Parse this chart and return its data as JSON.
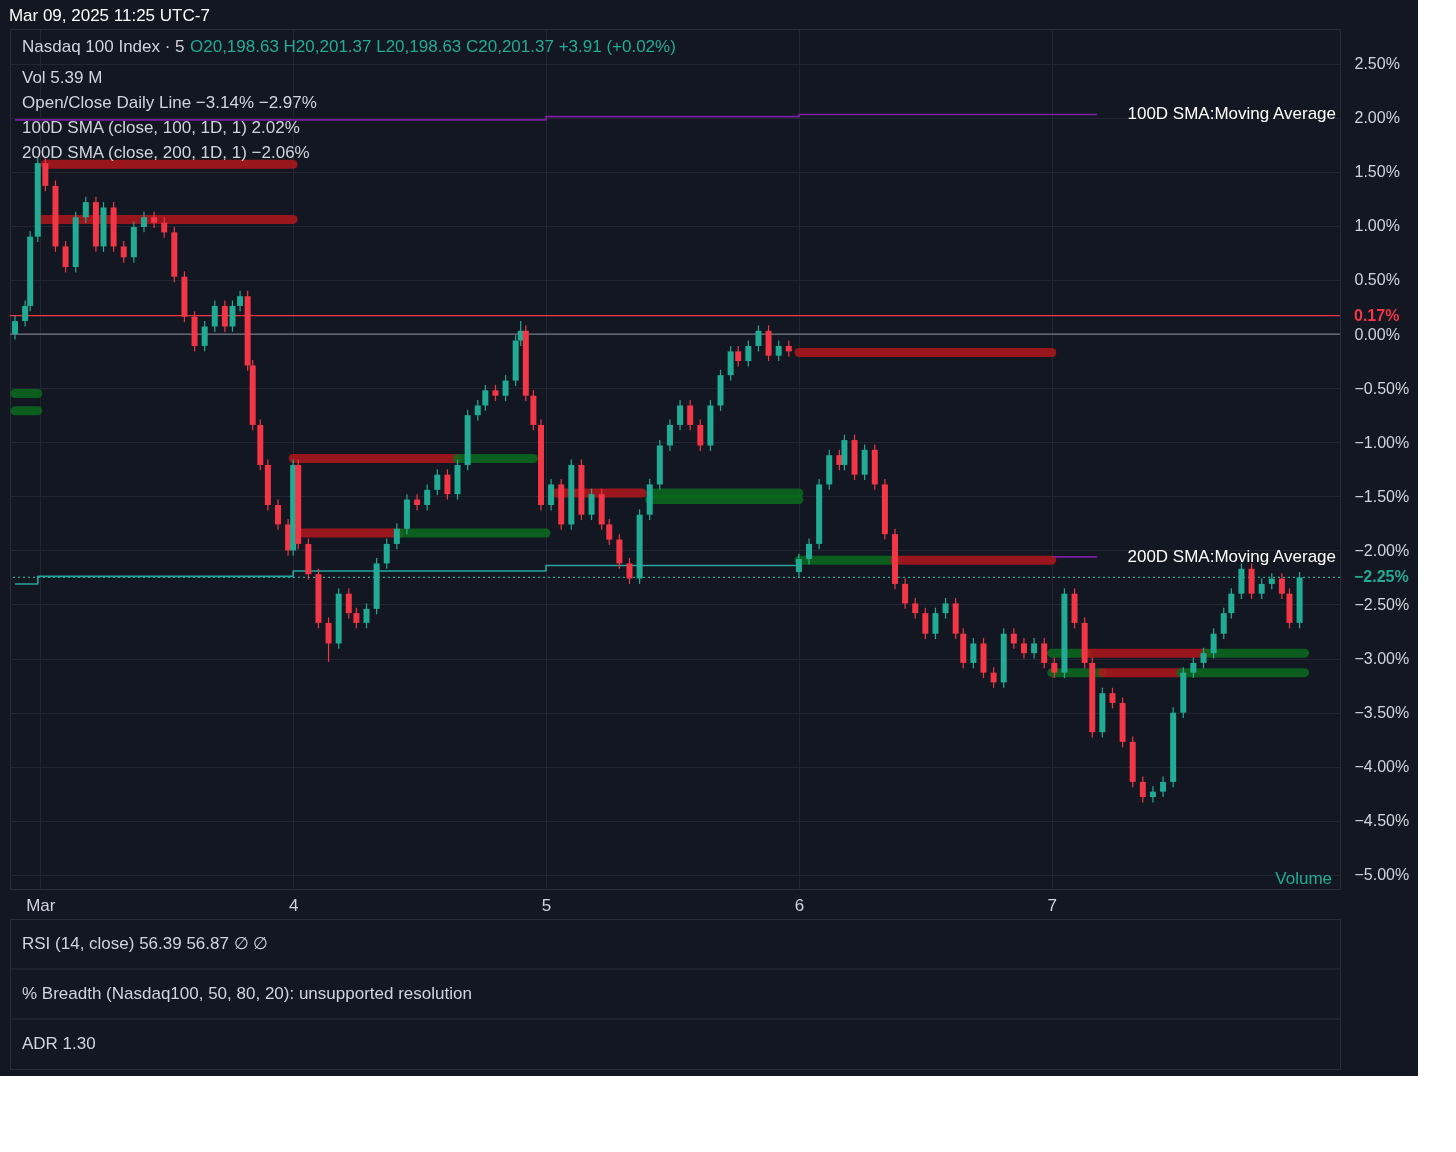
{
  "chart_data": {
    "type": "candlestick",
    "title": "Nasdaq 100 Index · 5",
    "annotations": [
      "O20,198.63  H20,201.37  L20,198.63  C20,201.37  +3.91 (+0.02%)",
      "Vol 5.39 M",
      "Open/Close Daily Line −3.14% −2.97%",
      "100D SMA (close, 100, 1D, 1) 2.02%",
      "200D SMA (close, 200, 1D, 1) −2.06%",
      "RSI (14, close) 56.39 56.87 ∅ ∅",
      "% Breadth (Nasdaq100, 50, 80, 20): unsupported resolution",
      "ADR 1.30",
      "Mar 09, 2025 11:25 UTC-7",
      "Volume",
      "100D SMA:Moving Average",
      "200D SMA:Moving Average"
    ],
    "xlim": [
      2.9,
      8.12
    ],
    "xticks": [
      {
        "value": 3,
        "label": "Mar"
      },
      4,
      5,
      6,
      7
    ],
    "ylim": [
      -5.13,
      2.82
    ],
    "yticks": [
      {
        "value": 2.5,
        "label": "2.50%"
      },
      {
        "value": 2,
        "label": "2.00%"
      },
      {
        "value": 1.5,
        "label": "1.50%"
      },
      {
        "value": 1,
        "label": "1.00%"
      },
      {
        "value": 0.5,
        "label": "0.50%"
      },
      {
        "value": 0,
        "label": "0.00%"
      },
      {
        "value": -0.5,
        "label": "−0.50%"
      },
      {
        "value": -1,
        "label": "−1.00%"
      },
      {
        "value": -1.5,
        "label": "−1.50%"
      },
      {
        "value": -2,
        "label": "−2.00%"
      },
      {
        "value": -2.5,
        "label": "−2.50%"
      },
      {
        "value": -3,
        "label": "−3.00%"
      },
      {
        "value": -3.5,
        "label": "−3.50%"
      },
      {
        "value": -4,
        "label": "−4.00%"
      },
      {
        "value": -4.5,
        "label": "−4.50%"
      },
      {
        "value": -5,
        "label": "−5.00%"
      }
    ],
    "grid": true,
    "ref_lines": [
      {
        "axis": "y",
        "value": 0.17,
        "label": "0.17%",
        "color": "#f23645"
      },
      {
        "axis": "y",
        "value": 0,
        "color": "#787b86"
      },
      {
        "axis": "y",
        "value": -2.25,
        "label": "−2.25%",
        "color": "#22ab94",
        "line_style": "dotted"
      }
    ],
    "series": [
      {
        "type": "step",
        "color": "#7b1fa2",
        "x": [
          2.9,
          5.0,
          6.0,
          7.18
        ],
        "values": [
          1.98,
          2.01,
          2.03,
          2.03
        ]
      },
      {
        "type": "step",
        "color": "#26a69a",
        "x": [
          2.9,
          2.99,
          4.0,
          5.0,
          6.0
        ],
        "values": [
          -2.31,
          -2.24,
          -2.19,
          -2.14,
          -2.1
        ]
      },
      {
        "type": "step",
        "color": "#7b1fa2",
        "x": [
          7.0,
          7.18
        ],
        "values": [
          -2.06,
          -2.06
        ]
      },
      {
        "type": "line",
        "color": "#0b6b1c",
        "x": [
          2.9,
          2.99
        ],
        "values": [
          -0.55,
          -0.55
        ]
      },
      {
        "type": "line",
        "color": "#0b6b1c",
        "x": [
          2.9,
          2.99
        ],
        "values": [
          -0.71,
          -0.71
        ]
      },
      {
        "type": "line",
        "color": "#b2181b",
        "x": [
          3.02,
          4.0
        ],
        "values": [
          1.57,
          1.57
        ]
      },
      {
        "type": "line",
        "color": "#b2181b",
        "x": [
          3.0,
          4.0
        ],
        "values": [
          1.06,
          1.06
        ]
      },
      {
        "type": "line",
        "color": "#b2181b",
        "x": [
          4.0,
          4.65
        ],
        "values": [
          -1.15,
          -1.15
        ]
      },
      {
        "type": "line",
        "color": "#0b6b1c",
        "x": [
          4.65,
          4.95
        ],
        "values": [
          -1.15,
          -1.15
        ]
      },
      {
        "type": "line",
        "color": "#b2181b",
        "x": [
          4.04,
          4.42
        ],
        "values": [
          -1.84,
          -1.84
        ]
      },
      {
        "type": "line",
        "color": "#0b6b1c",
        "x": [
          4.42,
          5.0
        ],
        "values": [
          -1.84,
          -1.84
        ]
      },
      {
        "type": "line",
        "color": "#b2181b",
        "x": [
          5.04,
          5.38
        ],
        "values": [
          -1.47,
          -1.47
        ]
      },
      {
        "type": "line",
        "color": "#0b6b1c",
        "x": [
          5.42,
          6.0
        ],
        "values": [
          -1.47,
          -1.47
        ]
      },
      {
        "type": "line",
        "color": "#0b6b1c",
        "x": [
          5.41,
          6.0
        ],
        "values": [
          -1.53,
          -1.53
        ]
      },
      {
        "type": "line",
        "color": "#b2181b",
        "x": [
          6.0,
          7.0
        ],
        "values": [
          -0.17,
          -0.17
        ]
      },
      {
        "type": "line",
        "color": "#0b6b1c",
        "x": [
          6.0,
          6.38
        ],
        "values": [
          -2.09,
          -2.09
        ]
      },
      {
        "type": "line",
        "color": "#b2181b",
        "x": [
          6.38,
          7.0
        ],
        "values": [
          -2.09,
          -2.09
        ]
      },
      {
        "type": "line",
        "color": "#0b6b1c",
        "x": [
          7.0,
          7.14
        ],
        "values": [
          -2.95,
          -2.95
        ]
      },
      {
        "type": "line",
        "color": "#b2181b",
        "x": [
          7.14,
          7.61
        ],
        "values": [
          -2.95,
          -2.95
        ]
      },
      {
        "type": "line",
        "color": "#0b6b1c",
        "x": [
          7.61,
          8.0
        ],
        "values": [
          -2.95,
          -2.95
        ]
      },
      {
        "type": "line",
        "color": "#0b6b1c",
        "x": [
          7.0,
          7.2
        ],
        "values": [
          -3.13,
          -3.13
        ]
      },
      {
        "type": "line",
        "color": "#b2181b",
        "x": [
          7.2,
          7.51
        ],
        "values": [
          -3.13,
          -3.13
        ]
      },
      {
        "type": "line",
        "color": "#0b6b1c",
        "x": [
          7.51,
          8.0
        ],
        "values": [
          -3.13,
          -3.13
        ]
      },
      {
        "colors": [
          "#22ab94",
          "#22ab94",
          "#22ab94",
          "#22ab94",
          "#f23645",
          "#f23645",
          "#f23645",
          "#22ab94",
          "#22ab94",
          "#f23645",
          "#22ab94",
          "#f23645",
          "#f23645",
          "#22ab94",
          "#22ab94",
          "#f23645",
          "#f23645",
          "#f23645",
          "#f23645",
          "#f23645",
          "#22ab94",
          "#22ab94",
          "#f23645",
          "#22ab94",
          "#22ab94",
          "#f23645",
          "#f23645",
          "#f23645",
          "#f23645",
          "#f23645",
          "#f23645",
          "#22ab94",
          "#f23645",
          "#f23645",
          "#f23645",
          "#f23645",
          "#22ab94",
          "#f23645",
          "#f23645",
          "#22ab94",
          "#22ab94",
          "#22ab94",
          "#22ab94",
          "#22ab94",
          "#f23645",
          "#22ab94",
          "#22ab94",
          "#f23645",
          "#22ab94",
          "#22ab94",
          "#22ab94",
          "#22ab94",
          "#f23645",
          "#22ab94",
          "#22ab94",
          "#22ab94",
          "#f23645",
          "#f23645",
          "#f23645",
          "#22ab94",
          "#f23645",
          "#22ab94",
          "#f23645",
          "#22ab94",
          "#f23645",
          "#f23645",
          "#f23645",
          "#f23645",
          "#22ab94",
          "#22ab94",
          "#22ab94",
          "#22ab94",
          "#22ab94",
          "#f23645",
          "#f23645",
          "#22ab94",
          "#22ab94",
          "#22ab94",
          "#f23645",
          "#22ab94",
          "#22ab94",
          "#f23645",
          "#22ab94",
          "#f23645",
          "#22ab94",
          "#22ab94",
          "#22ab94",
          "#22ab94",
          "#f23645",
          "#22ab94",
          "#f23645",
          "#22ab94",
          "#f23645",
          "#f23645",
          "#f23645",
          "#f23645",
          "#f23645",
          "#f23645",
          "#22ab94",
          "#22ab94",
          "#f23645",
          "#f23645",
          "#22ab94",
          "#f23645",
          "#f23645",
          "#22ab94",
          "#f23645",
          "#f23645",
          "#22ab94",
          "#f23645",
          "#f23645",
          "#22ab94",
          "#f23645",
          "#f23645",
          "#f23645",
          "#22ab94",
          "#f23645",
          "#f23645",
          "#f23645",
          "#f23645",
          "#22ab94",
          "#22ab94",
          "#22ab94",
          "#22ab94",
          "#22ab94",
          "#22ab94",
          "#22ab94",
          "#22ab94",
          "#22ab94",
          "#22ab94",
          "#f23645",
          "#22ab94",
          "#22ab94",
          "#f23645",
          "#f23645",
          "#22ab94"
        ],
        "x": [
          2.9,
          2.94,
          2.96,
          2.99,
          3.02,
          3.06,
          3.1,
          3.14,
          3.18,
          3.22,
          3.25,
          3.29,
          3.33,
          3.37,
          3.41,
          3.45,
          3.49,
          3.53,
          3.57,
          3.61,
          3.65,
          3.69,
          3.73,
          3.76,
          3.79,
          3.82,
          3.84,
          3.87,
          3.9,
          3.94,
          3.98,
          4.0,
          4.02,
          4.06,
          4.1,
          4.14,
          4.18,
          4.22,
          4.25,
          4.29,
          4.33,
          4.37,
          4.41,
          4.45,
          4.49,
          4.53,
          4.57,
          4.61,
          4.65,
          4.69,
          4.73,
          4.76,
          4.8,
          4.84,
          4.88,
          4.9,
          4.92,
          4.95,
          4.98,
          5.02,
          5.06,
          5.1,
          5.14,
          5.18,
          5.22,
          5.25,
          5.29,
          5.33,
          5.37,
          5.41,
          5.45,
          5.49,
          5.53,
          5.57,
          5.61,
          5.65,
          5.69,
          5.73,
          5.76,
          5.8,
          5.84,
          5.88,
          5.92,
          5.96,
          6.0,
          6.04,
          6.08,
          6.12,
          6.16,
          6.18,
          6.22,
          6.26,
          6.3,
          6.34,
          6.38,
          6.42,
          6.46,
          6.5,
          6.54,
          6.58,
          6.62,
          6.65,
          6.69,
          6.73,
          6.77,
          6.81,
          6.85,
          6.89,
          6.93,
          6.97,
          7.01,
          7.05,
          7.09,
          7.13,
          7.16,
          7.2,
          7.24,
          7.28,
          7.32,
          7.36,
          7.4,
          7.44,
          7.48,
          7.52,
          7.56,
          7.6,
          7.64,
          7.68,
          7.71,
          7.75,
          7.79,
          7.83,
          7.87,
          7.91,
          7.94,
          7.98
        ],
        "ohlc": [
          [
            0.0,
            0.17,
            -0.05,
            0.12
          ],
          [
            0.12,
            0.31,
            0.07,
            0.26
          ],
          [
            0.26,
            0.95,
            0.21,
            0.9
          ],
          [
            0.9,
            1.63,
            0.85,
            1.58
          ],
          [
            1.58,
            1.63,
            1.32,
            1.37
          ],
          [
            1.37,
            1.42,
            0.76,
            0.81
          ],
          [
            0.81,
            0.86,
            0.57,
            0.62
          ],
          [
            0.62,
            1.13,
            0.57,
            1.08
          ],
          [
            1.08,
            1.27,
            1.03,
            1.22
          ],
          [
            1.22,
            1.27,
            0.76,
            0.81
          ],
          [
            0.81,
            1.22,
            0.76,
            1.17
          ],
          [
            1.17,
            1.22,
            0.76,
            0.81
          ],
          [
            0.81,
            0.86,
            0.66,
            0.71
          ],
          [
            0.71,
            1.04,
            0.66,
            0.99
          ],
          [
            0.99,
            1.13,
            0.94,
            1.08
          ],
          [
            1.08,
            1.13,
            0.98,
            1.03
          ],
          [
            1.03,
            1.08,
            0.89,
            0.94
          ],
          [
            0.94,
            0.99,
            0.48,
            0.53
          ],
          [
            0.53,
            0.58,
            0.11,
            0.16
          ],
          [
            0.16,
            0.21,
            -0.16,
            -0.11
          ],
          [
            -0.11,
            0.12,
            -0.16,
            0.07
          ],
          [
            0.07,
            0.31,
            0.02,
            0.26
          ],
          [
            0.26,
            0.31,
            0.02,
            0.07
          ],
          [
            0.07,
            0.31,
            0.02,
            0.26
          ],
          [
            0.26,
            0.4,
            0.21,
            0.35
          ],
          [
            0.35,
            0.4,
            -0.34,
            -0.29
          ],
          [
            -0.29,
            -0.24,
            -0.89,
            -0.84
          ],
          [
            -0.84,
            -0.79,
            -1.26,
            -1.21
          ],
          [
            -1.21,
            -1.16,
            -1.63,
            -1.58
          ],
          [
            -1.58,
            -1.53,
            -1.81,
            -1.76
          ],
          [
            -1.76,
            -1.71,
            -2.05,
            -2.0
          ],
          [
            -2.0,
            -1.16,
            -2.05,
            -1.21
          ],
          [
            -1.21,
            -1.16,
            -1.99,
            -1.94
          ],
          [
            -1.94,
            -1.89,
            -2.27,
            -2.22
          ],
          [
            -2.22,
            -2.17,
            -2.72,
            -2.67
          ],
          [
            -2.67,
            -2.62,
            -3.03,
            -2.86
          ],
          [
            -2.86,
            -2.35,
            -2.91,
            -2.4
          ],
          [
            -2.4,
            -2.35,
            -2.63,
            -2.58
          ],
          [
            -2.58,
            -2.53,
            -2.72,
            -2.67
          ],
          [
            -2.67,
            -2.49,
            -2.72,
            -2.54
          ],
          [
            -2.54,
            -2.07,
            -2.59,
            -2.12
          ],
          [
            -2.12,
            -1.89,
            -2.17,
            -1.94
          ],
          [
            -1.94,
            -1.75,
            -1.99,
            -1.8
          ],
          [
            -1.8,
            -1.48,
            -1.85,
            -1.53
          ],
          [
            -1.53,
            -1.48,
            -1.63,
            -1.58
          ],
          [
            -1.58,
            -1.39,
            -1.63,
            -1.44
          ],
          [
            -1.44,
            -1.25,
            -1.49,
            -1.3
          ],
          [
            -1.3,
            -1.25,
            -1.53,
            -1.48
          ],
          [
            -1.48,
            -1.16,
            -1.53,
            -1.21
          ],
          [
            -1.21,
            -0.7,
            -1.26,
            -0.75
          ],
          [
            -0.75,
            -0.61,
            -0.8,
            -0.66
          ],
          [
            -0.66,
            -0.47,
            -0.71,
            -0.52
          ],
          [
            -0.52,
            -0.47,
            -0.62,
            -0.57
          ],
          [
            -0.57,
            -0.38,
            -0.62,
            -0.43
          ],
          [
            -0.43,
            -0.01,
            -0.48,
            -0.06
          ],
          [
            -0.06,
            0.12,
            -0.11,
            0.03
          ],
          [
            0.03,
            0.08,
            -0.62,
            -0.57
          ],
          [
            -0.57,
            -0.52,
            -0.89,
            -0.84
          ],
          [
            -0.84,
            -0.79,
            -1.63,
            -1.58
          ],
          [
            -1.58,
            -1.34,
            -1.63,
            -1.39
          ],
          [
            -1.39,
            -1.34,
            -1.81,
            -1.76
          ],
          [
            -1.76,
            -1.16,
            -1.81,
            -1.21
          ],
          [
            -1.21,
            -1.16,
            -1.72,
            -1.67
          ],
          [
            -1.67,
            -1.43,
            -1.72,
            -1.48
          ],
          [
            -1.48,
            -1.43,
            -1.81,
            -1.76
          ],
          [
            -1.76,
            -1.71,
            -1.95,
            -1.9
          ],
          [
            -1.9,
            -1.85,
            -2.17,
            -2.12
          ],
          [
            -2.12,
            -2.07,
            -2.31,
            -2.26
          ],
          [
            -2.26,
            -1.62,
            -2.31,
            -1.67
          ],
          [
            -1.67,
            -1.34,
            -1.72,
            -1.39
          ],
          [
            -1.39,
            -0.98,
            -1.44,
            -1.03
          ],
          [
            -1.03,
            -0.79,
            -1.08,
            -0.84
          ],
          [
            -0.84,
            -0.61,
            -0.89,
            -0.66
          ],
          [
            -0.66,
            -0.61,
            -0.89,
            -0.84
          ],
          [
            -0.84,
            -0.79,
            -1.08,
            -1.03
          ],
          [
            -1.03,
            -0.61,
            -1.08,
            -0.66
          ],
          [
            -0.66,
            -0.33,
            -0.71,
            -0.38
          ],
          [
            -0.38,
            -0.11,
            -0.43,
            -0.16
          ],
          [
            -0.16,
            -0.11,
            -0.3,
            -0.25
          ],
          [
            -0.25,
            -0.06,
            -0.3,
            -0.11
          ],
          [
            -0.11,
            0.08,
            -0.16,
            0.03
          ],
          [
            0.03,
            0.08,
            -0.25,
            -0.2
          ],
          [
            -0.2,
            -0.06,
            -0.25,
            -0.11
          ],
          [
            -0.11,
            -0.06,
            -0.21,
            -0.16
          ],
          [
            -2.2,
            -2.03,
            -2.25,
            -2.08
          ],
          [
            -2.08,
            -1.89,
            -2.13,
            -1.94
          ],
          [
            -1.94,
            -1.34,
            -1.99,
            -1.39
          ],
          [
            -1.39,
            -1.07,
            -1.44,
            -1.12
          ],
          [
            -1.12,
            -1.07,
            -1.26,
            -1.21
          ],
          [
            -1.21,
            -0.93,
            -1.26,
            -0.98
          ],
          [
            -0.98,
            -0.93,
            -1.35,
            -1.3
          ],
          [
            -1.3,
            -1.02,
            -1.35,
            -1.07
          ],
          [
            -1.07,
            -1.02,
            -1.44,
            -1.39
          ],
          [
            -1.39,
            -1.34,
            -1.9,
            -1.85
          ],
          [
            -1.85,
            -1.8,
            -2.36,
            -2.31
          ],
          [
            -2.31,
            -2.26,
            -2.54,
            -2.49
          ],
          [
            -2.49,
            -2.44,
            -2.63,
            -2.58
          ],
          [
            -2.58,
            -2.53,
            -2.82,
            -2.77
          ],
          [
            -2.77,
            -2.53,
            -2.82,
            -2.58
          ],
          [
            -2.58,
            -2.44,
            -2.63,
            -2.49
          ],
          [
            -2.49,
            -2.44,
            -2.82,
            -2.77
          ],
          [
            -2.77,
            -2.72,
            -3.09,
            -3.04
          ],
          [
            -3.04,
            -2.81,
            -3.09,
            -2.86
          ],
          [
            -2.86,
            -2.81,
            -3.18,
            -3.13
          ],
          [
            -3.13,
            -3.08,
            -3.27,
            -3.22
          ],
          [
            -3.22,
            -2.72,
            -3.27,
            -2.77
          ],
          [
            -2.77,
            -2.72,
            -2.91,
            -2.86
          ],
          [
            -2.86,
            -2.81,
            -3.0,
            -2.95
          ],
          [
            -2.95,
            -2.81,
            -3.0,
            -2.86
          ],
          [
            -2.86,
            -2.81,
            -3.09,
            -3.04
          ],
          [
            -3.04,
            -2.99,
            -3.18,
            -3.13
          ],
          [
            -3.13,
            -2.35,
            -3.18,
            -2.4
          ],
          [
            -2.4,
            -2.35,
            -2.72,
            -2.67
          ],
          [
            -2.67,
            -2.62,
            -3.09,
            -3.04
          ],
          [
            -3.04,
            -2.99,
            -3.73,
            -3.68
          ],
          [
            -3.68,
            -3.27,
            -3.73,
            -3.32
          ],
          [
            -3.32,
            -3.27,
            -3.46,
            -3.41
          ],
          [
            -3.41,
            -3.36,
            -3.82,
            -3.77
          ],
          [
            -3.77,
            -3.72,
            -4.19,
            -4.14
          ],
          [
            -4.14,
            -4.09,
            -4.33,
            -4.28
          ],
          [
            -4.28,
            -4.18,
            -4.33,
            -4.23
          ],
          [
            -4.23,
            -4.09,
            -4.28,
            -4.14
          ],
          [
            -4.14,
            -3.45,
            -4.19,
            -3.5
          ],
          [
            -3.5,
            -3.08,
            -3.55,
            -3.13
          ],
          [
            -3.13,
            -2.99,
            -3.18,
            -3.04
          ],
          [
            -3.04,
            -2.9,
            -3.09,
            -2.95
          ],
          [
            -2.95,
            -2.72,
            -3.0,
            -2.77
          ],
          [
            -2.77,
            -2.53,
            -2.82,
            -2.58
          ],
          [
            -2.58,
            -2.35,
            -2.63,
            -2.4
          ],
          [
            -2.4,
            -2.12,
            -2.45,
            -2.17
          ],
          [
            -2.17,
            -2.12,
            -2.45,
            -2.4
          ],
          [
            -2.4,
            -2.26,
            -2.45,
            -2.31
          ],
          [
            -2.31,
            -2.21,
            -2.36,
            -2.26
          ],
          [
            -2.26,
            -2.21,
            -2.45,
            -2.4
          ],
          [
            -2.4,
            -2.35,
            -2.72,
            -2.67
          ],
          [
            -2.67,
            -2.2,
            -2.72,
            -2.25
          ]
        ]
      }
    ]
  }
}
